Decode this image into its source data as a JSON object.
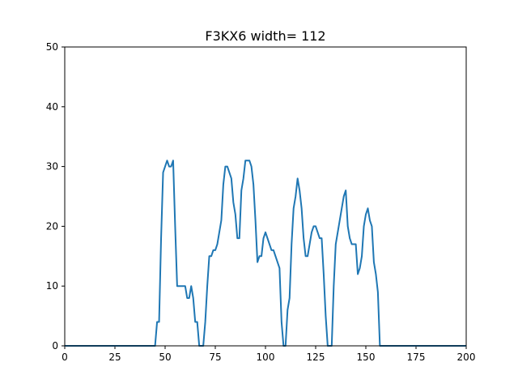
{
  "chart_data": {
    "type": "line",
    "title": "F3KX6 width= 112",
    "xlabel": "",
    "ylabel": "",
    "xlim": [
      0,
      200
    ],
    "ylim": [
      0,
      50
    ],
    "x_ticks": [
      0,
      25,
      50,
      75,
      100,
      125,
      150,
      175,
      200
    ],
    "y_ticks": [
      0,
      10,
      20,
      30,
      40,
      50
    ],
    "grid": false,
    "series": [
      {
        "color": "#1f77b4",
        "points": [
          [
            0,
            0
          ],
          [
            45,
            0
          ],
          [
            46,
            4
          ],
          [
            47,
            4
          ],
          [
            48,
            18
          ],
          [
            49,
            29
          ],
          [
            50,
            30
          ],
          [
            51,
            31
          ],
          [
            52,
            30
          ],
          [
            53,
            30
          ],
          [
            54,
            31
          ],
          [
            55,
            20
          ],
          [
            56,
            10
          ],
          [
            57,
            10
          ],
          [
            58,
            10
          ],
          [
            59,
            10
          ],
          [
            60,
            10
          ],
          [
            61,
            8
          ],
          [
            62,
            8
          ],
          [
            63,
            10
          ],
          [
            64,
            8
          ],
          [
            65,
            4
          ],
          [
            66,
            4
          ],
          [
            67,
            0
          ],
          [
            68,
            0
          ],
          [
            69,
            0
          ],
          [
            70,
            4
          ],
          [
            71,
            10
          ],
          [
            72,
            15
          ],
          [
            73,
            15
          ],
          [
            74,
            16
          ],
          [
            75,
            16
          ],
          [
            76,
            17
          ],
          [
            77,
            19
          ],
          [
            78,
            21
          ],
          [
            79,
            27
          ],
          [
            80,
            30
          ],
          [
            81,
            30
          ],
          [
            82,
            29
          ],
          [
            83,
            28
          ],
          [
            84,
            24
          ],
          [
            85,
            22
          ],
          [
            86,
            18
          ],
          [
            87,
            18
          ],
          [
            88,
            26
          ],
          [
            89,
            28
          ],
          [
            90,
            31
          ],
          [
            91,
            31
          ],
          [
            92,
            31
          ],
          [
            93,
            30
          ],
          [
            94,
            27
          ],
          [
            95,
            21
          ],
          [
            96,
            14
          ],
          [
            97,
            15
          ],
          [
            98,
            15
          ],
          [
            99,
            18
          ],
          [
            100,
            19
          ],
          [
            101,
            18
          ],
          [
            102,
            17
          ],
          [
            103,
            16
          ],
          [
            104,
            16
          ],
          [
            105,
            15
          ],
          [
            106,
            14
          ],
          [
            107,
            13
          ],
          [
            108,
            4
          ],
          [
            109,
            0
          ],
          [
            110,
            0
          ],
          [
            111,
            6
          ],
          [
            112,
            8
          ],
          [
            113,
            17
          ],
          [
            114,
            23
          ],
          [
            115,
            25
          ],
          [
            116,
            28
          ],
          [
            117,
            26
          ],
          [
            118,
            23
          ],
          [
            119,
            18
          ],
          [
            120,
            15
          ],
          [
            121,
            15
          ],
          [
            122,
            17
          ],
          [
            123,
            19
          ],
          [
            124,
            20
          ],
          [
            125,
            20
          ],
          [
            126,
            19
          ],
          [
            127,
            18
          ],
          [
            128,
            18
          ],
          [
            129,
            12
          ],
          [
            130,
            5
          ],
          [
            131,
            0
          ],
          [
            132,
            0
          ],
          [
            133,
            0
          ],
          [
            134,
            10
          ],
          [
            135,
            17
          ],
          [
            136,
            19
          ],
          [
            137,
            21
          ],
          [
            138,
            23
          ],
          [
            139,
            25
          ],
          [
            140,
            26
          ],
          [
            141,
            20
          ],
          [
            142,
            18
          ],
          [
            143,
            17
          ],
          [
            144,
            17
          ],
          [
            145,
            17
          ],
          [
            146,
            12
          ],
          [
            147,
            13
          ],
          [
            148,
            15
          ],
          [
            149,
            20
          ],
          [
            150,
            22
          ],
          [
            151,
            23
          ],
          [
            152,
            21
          ],
          [
            153,
            20
          ],
          [
            154,
            14
          ],
          [
            155,
            12
          ],
          [
            156,
            9
          ],
          [
            157,
            0
          ],
          [
            158,
            0
          ],
          [
            200,
            0
          ]
        ]
      }
    ]
  }
}
